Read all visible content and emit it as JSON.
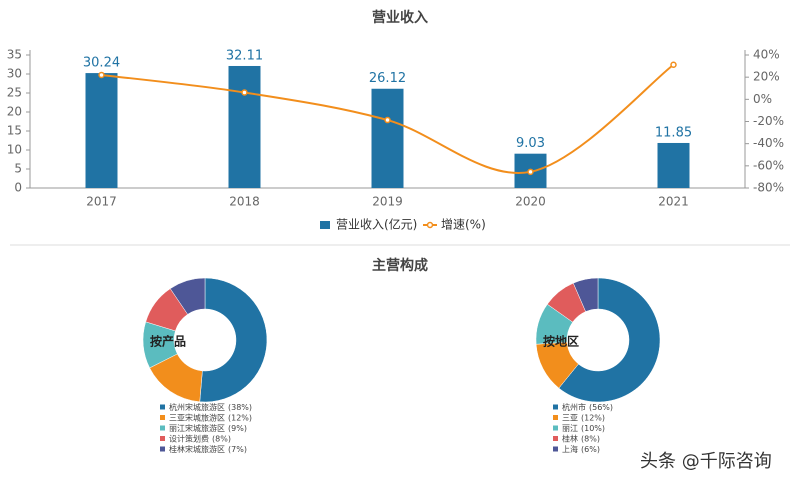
{
  "chart_data": [
    {
      "type": "bar",
      "title": "营业收入",
      "categories": [
        "2017",
        "2018",
        "2019",
        "2020",
        "2021"
      ],
      "series": [
        {
          "name": "营业收入(亿元)",
          "type": "bar",
          "color": "#2073a4",
          "values": [
            30.24,
            32.11,
            26.12,
            9.03,
            11.85
          ]
        },
        {
          "name": "增速(%)",
          "type": "line",
          "axis": "y2",
          "color": "#f28e1c",
          "values": [
            22,
            6.2,
            -18.7,
            -65.4,
            31.2
          ]
        }
      ],
      "ylim": [
        0,
        35
      ],
      "yticks": [
        0,
        5,
        10,
        15,
        20,
        25,
        30,
        35
      ],
      "y2lim": [
        -80,
        40
      ],
      "y2ticks": [
        {
          "value": -80,
          "label": "-80%"
        },
        {
          "value": -60,
          "label": "-60%"
        },
        {
          "value": -40,
          "label": "-40%"
        },
        {
          "value": -20,
          "label": "-20%"
        },
        {
          "value": 0,
          "label": "0%"
        },
        {
          "value": 20,
          "label": "20%"
        },
        {
          "value": 40,
          "label": "40%"
        }
      ]
    },
    {
      "type": "pie",
      "title": "主营构成",
      "label": "按产品",
      "categories": [
        "杭州宋城旅游区",
        "三亚宋城旅游区",
        "丽江宋城旅游区",
        "设计策划费",
        "桂林宋城旅游区"
      ],
      "values": [
        38,
        12,
        9,
        8,
        7
      ],
      "value_labels": [
        "(38%)",
        "(12%)",
        "(9%)",
        "(8%)",
        "(7%)"
      ],
      "colors": [
        "#2073a4",
        "#f28e1c",
        "#5bbcbf",
        "#e05c5c",
        "#4e5797"
      ]
    },
    {
      "type": "pie",
      "label": "按地区",
      "categories": [
        "杭州市",
        "三亚",
        "丽江",
        "桂林",
        "上海"
      ],
      "values": [
        56,
        12,
        10,
        8,
        6
      ],
      "value_labels": [
        "(56%)",
        "(12%)",
        "(10%)",
        "(8%)",
        "(6%)"
      ],
      "colors": [
        "#2073a4",
        "#f28e1c",
        "#5bbcbf",
        "#e05c5c",
        "#4e5797"
      ]
    }
  ],
  "watermark": "头条 @千际咨询"
}
